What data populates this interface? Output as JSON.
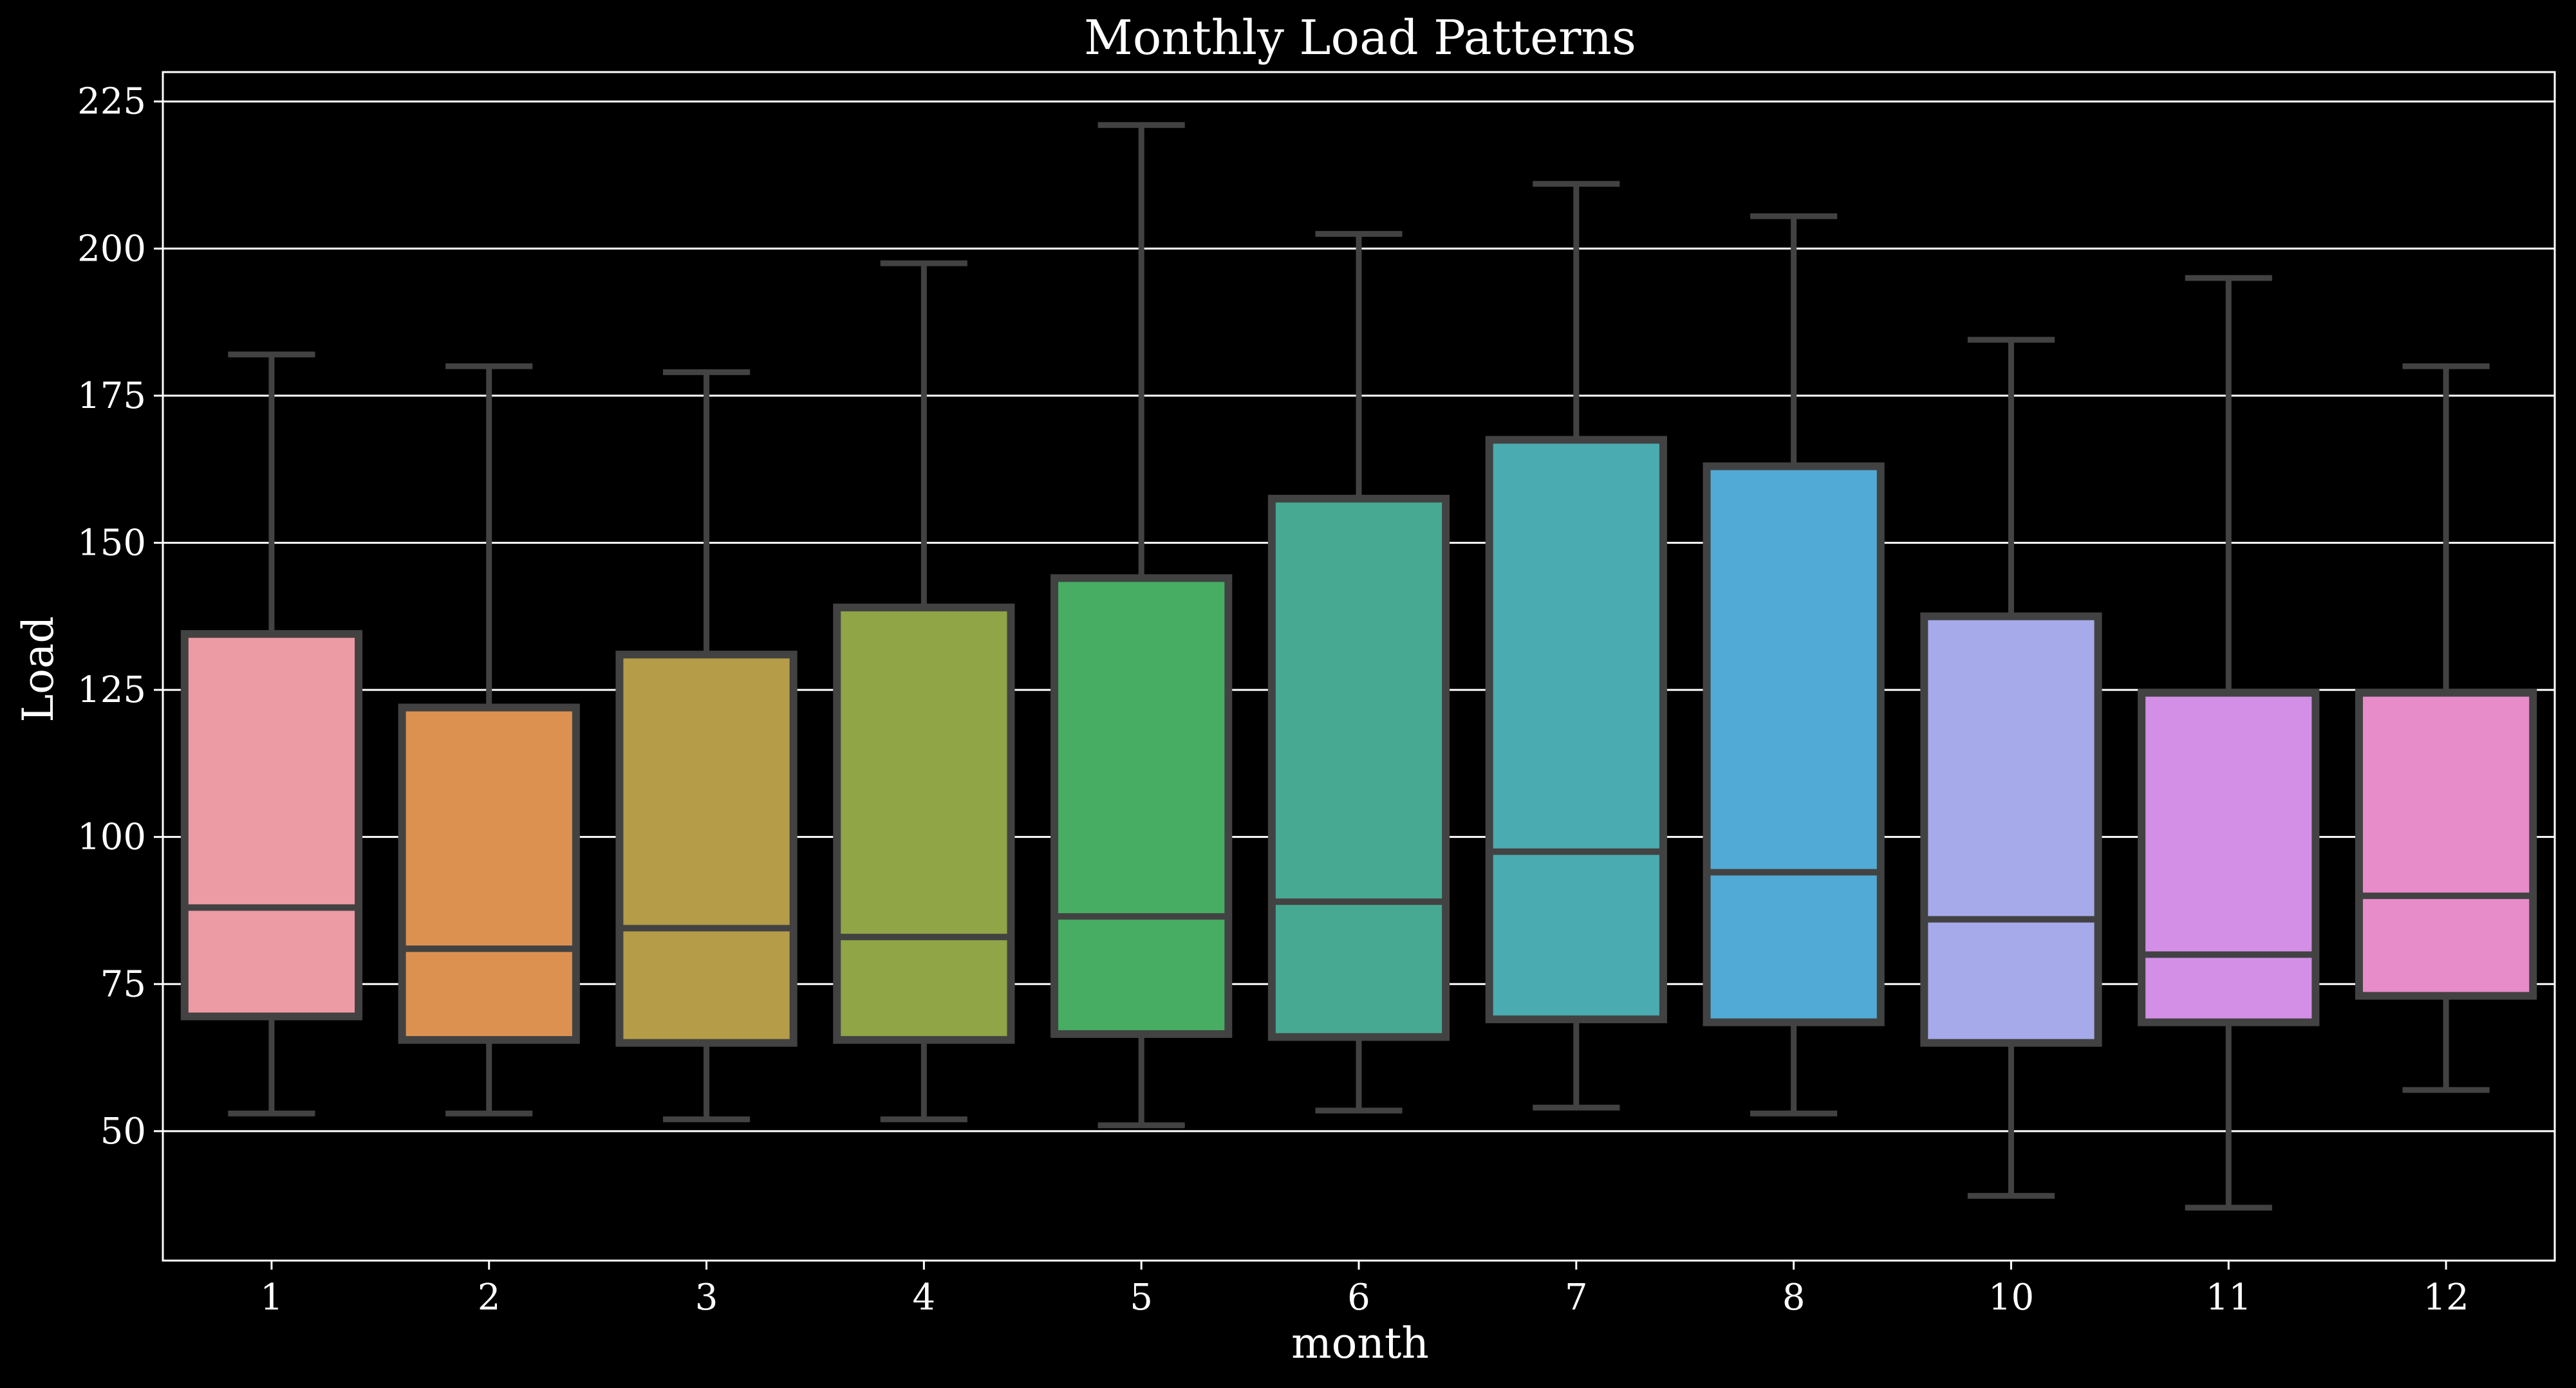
{
  "chart_data": {
    "type": "box",
    "title": "Monthly Load Patterns",
    "xlabel": "month",
    "ylabel": "Load",
    "ylim": [
      28,
      230
    ],
    "yticks": [
      50,
      75,
      100,
      125,
      150,
      175,
      200,
      225
    ],
    "grid": "horizontal",
    "categories": [
      "1",
      "2",
      "3",
      "4",
      "5",
      "6",
      "7",
      "8",
      "10",
      "11",
      "12"
    ],
    "boxes": [
      {
        "month": "1",
        "whisker_low": 53,
        "q1": 69.5,
        "median": 88,
        "q3": 134.5,
        "whisker_high": 182,
        "color": "#ec9aa4"
      },
      {
        "month": "2",
        "whisker_low": 53,
        "q1": 65.5,
        "median": 81,
        "q3": 122,
        "whisker_high": 180,
        "color": "#dd9150"
      },
      {
        "month": "3",
        "whisker_low": 52,
        "q1": 65,
        "median": 84.5,
        "q3": 131,
        "whisker_high": 179,
        "color": "#b49c48"
      },
      {
        "month": "4",
        "whisker_low": 52,
        "q1": 65.5,
        "median": 83,
        "q3": 139,
        "whisker_high": 197.5,
        "color": "#8fa546"
      },
      {
        "month": "5",
        "whisker_low": 51,
        "q1": 66.5,
        "median": 86.5,
        "q3": 144,
        "whisker_high": 221,
        "color": "#46ad63"
      },
      {
        "month": "6",
        "whisker_low": 53.5,
        "q1": 66,
        "median": 89,
        "q3": 157.5,
        "whisker_high": 202.5,
        "color": "#48a993"
      },
      {
        "month": "7",
        "whisker_low": 54,
        "q1": 69,
        "median": 97.5,
        "q3": 167.5,
        "whisker_high": 211,
        "color": "#4aabb0"
      },
      {
        "month": "8",
        "whisker_low": 53,
        "q1": 68.5,
        "median": 94,
        "q3": 163,
        "whisker_high": 205.5,
        "color": "#51aad5"
      },
      {
        "month": "10",
        "whisker_low": 39,
        "q1": 65,
        "median": 86,
        "q3": 137.5,
        "whisker_high": 184.5,
        "color": "#a6aaea"
      },
      {
        "month": "11",
        "whisker_low": 37,
        "q1": 68.5,
        "median": 80,
        "q3": 124.5,
        "whisker_high": 195,
        "color": "#d38fe6"
      },
      {
        "month": "12",
        "whisker_low": 57,
        "q1": 73,
        "median": 90,
        "q3": 124.5,
        "whisker_high": 180,
        "color": "#e78bc9"
      }
    ],
    "box_edge_color": "#424242"
  }
}
